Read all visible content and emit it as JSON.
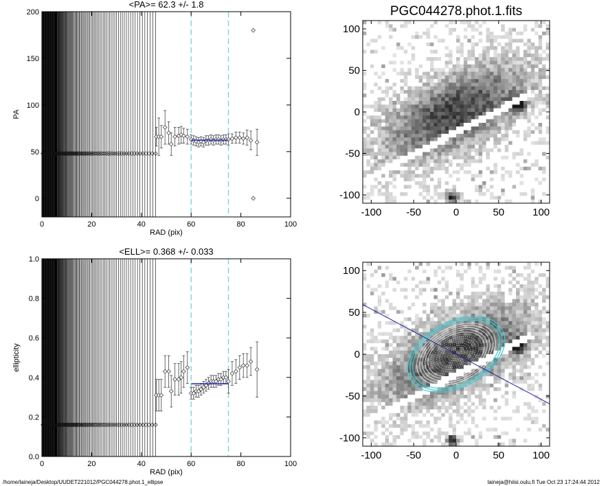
{
  "footer": {
    "path": "/home/laineja/Desktop/UUDET221012/PGC044278.phot.1_ellipse",
    "user_date": "laineja@hiisi.oulu.fi  Tue Oct 23 17:24:44 2012"
  },
  "chart_data": [
    {
      "type": "scatter",
      "title": "<PA>=  62.3 +/-   1.8",
      "xlabel": "RAD (pix)",
      "ylabel": "PA",
      "xlim": [
        0,
        100
      ],
      "ylim": [
        -20,
        200
      ],
      "xticks": [
        0,
        20,
        40,
        60,
        80,
        100
      ],
      "yticks": [
        0,
        50,
        100,
        150,
        200
      ],
      "grid": false,
      "fit_range_markers_x": [
        60,
        75
      ],
      "mean_line": {
        "x": [
          60,
          75
        ],
        "y": 62.3
      },
      "inner_series": {
        "x_range": [
          0,
          46
        ],
        "y": 48,
        "note_visible": false
      },
      "series": [
        {
          "x": [
            46,
            47,
            48,
            49.5,
            51,
            52,
            53.5,
            55,
            56,
            57,
            58.5,
            60,
            61,
            62,
            63,
            64,
            65,
            66,
            67,
            68,
            69,
            70,
            71,
            72,
            73,
            74,
            75,
            76.5,
            78,
            79.5,
            81,
            82.5,
            84,
            85,
            86.5
          ],
          "y": [
            66,
            66,
            66,
            76,
            70,
            58,
            66,
            67,
            68,
            67,
            66,
            63,
            62,
            61,
            60,
            61,
            60,
            62,
            62,
            63,
            62,
            63,
            63,
            62,
            63,
            63,
            63,
            64,
            65,
            65,
            64,
            65,
            62,
            180,
            60
          ],
          "err": [
            10,
            20,
            12,
            18,
            12,
            12,
            10,
            9,
            9,
            8,
            8,
            5,
            5,
            5,
            5,
            5,
            5,
            5,
            5,
            5,
            5,
            5,
            5,
            5,
            5,
            5,
            6,
            5,
            6,
            6,
            6,
            8,
            10,
            0,
            14
          ]
        }
      ],
      "outlier": {
        "x": 85,
        "y": 0
      }
    },
    {
      "type": "scatter",
      "title": "<ELL>= 0.368 +/-  0.033",
      "xlabel": "RAD (pix)",
      "ylabel": "ellipticity",
      "xlim": [
        0,
        100
      ],
      "ylim": [
        0.0,
        1.0
      ],
      "xticks": [
        0,
        20,
        40,
        60,
        80,
        100
      ],
      "yticks": [
        0.0,
        0.2,
        0.4,
        0.6,
        0.8,
        1.0
      ],
      "grid": false,
      "fit_range_markers_x": [
        60,
        75
      ],
      "mean_line": {
        "x": [
          60,
          75
        ],
        "y": 0.368
      },
      "inner_series": {
        "x_range": [
          0,
          46
        ],
        "y": 0.16
      },
      "series": [
        {
          "x": [
            46,
            47,
            48,
            49.5,
            51,
            52,
            53.5,
            55,
            56,
            57,
            58.5,
            60,
            61,
            62,
            63,
            64,
            65,
            66,
            67,
            68,
            69,
            70,
            71,
            72,
            73,
            74,
            75,
            76.5,
            78,
            79.5,
            81,
            82.5,
            84,
            86.5
          ],
          "y": [
            0.31,
            0.31,
            0.31,
            0.43,
            0.43,
            0.33,
            0.39,
            0.39,
            0.4,
            0.43,
            0.45,
            0.32,
            0.32,
            0.33,
            0.33,
            0.34,
            0.35,
            0.36,
            0.37,
            0.38,
            0.38,
            0.38,
            0.39,
            0.39,
            0.4,
            0.4,
            0.38,
            0.42,
            0.43,
            0.45,
            0.46,
            0.46,
            0.48,
            0.44
          ],
          "err": [
            0.08,
            0.08,
            0.08,
            0.08,
            0.08,
            0.08,
            0.08,
            0.08,
            0.08,
            0.08,
            0.08,
            0.03,
            0.03,
            0.03,
            0.03,
            0.03,
            0.03,
            0.03,
            0.03,
            0.03,
            0.03,
            0.03,
            0.03,
            0.03,
            0.03,
            0.03,
            0.06,
            0.06,
            0.06,
            0.06,
            0.06,
            0.06,
            0.07,
            0.14
          ]
        }
      ]
    },
    {
      "type": "heatmap",
      "title": "PGC044278.phot.1.fits",
      "xlim": [
        -110,
        110
      ],
      "ylim": [
        -110,
        110
      ],
      "xticks": [
        -100,
        -50,
        0,
        50,
        100
      ],
      "yticks": [
        -100,
        -50,
        0,
        50,
        100
      ],
      "colormap": "grayscale",
      "features": {
        "galaxy_center": [
          0,
          0
        ],
        "bright_star": [
          72,
          10
        ],
        "star_2": [
          -5,
          -103
        ]
      }
    },
    {
      "type": "heatmap",
      "title": "",
      "xlim": [
        -110,
        110
      ],
      "ylim": [
        -110,
        110
      ],
      "xticks": [
        -100,
        -50,
        0,
        50,
        100
      ],
      "yticks": [
        -100,
        -50,
        0,
        50,
        100
      ],
      "colormap": "grayscale",
      "overlay": {
        "pa_line_angle_deg": 62.3,
        "ellipse_color": "#40c8d0",
        "line_color": "#2020a0"
      }
    }
  ],
  "colors": {
    "axis": "#000000",
    "marker": "#444444",
    "fit_line": "#3030c0",
    "dashed": "#80d8e0",
    "ellipse": "#40c8d0"
  }
}
